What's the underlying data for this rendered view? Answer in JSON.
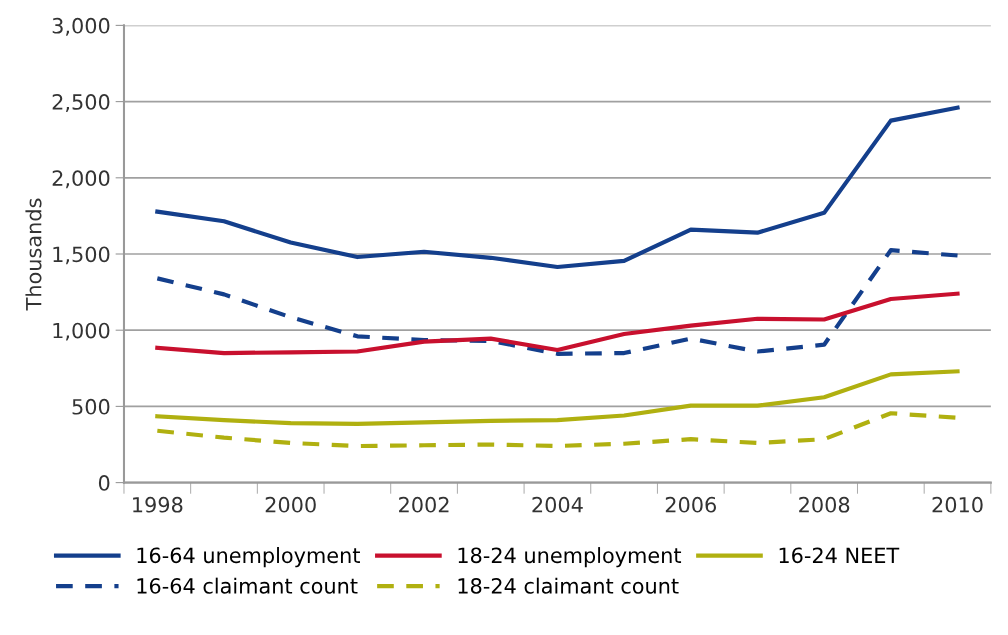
{
  "chart_data": {
    "type": "line",
    "ylabel": "Thousands",
    "categories": [
      "1998",
      null,
      "2000",
      null,
      "2002",
      null,
      "2004",
      null,
      "2006",
      null,
      "2008",
      null,
      "2010"
    ],
    "ylim": [
      0,
      3000
    ],
    "yticks": [
      0,
      {
        "value": 500,
        "label": "500"
      },
      {
        "value": 1000,
        "label": "1,000"
      },
      {
        "value": 1500,
        "label": "1,500"
      },
      {
        "value": 2000,
        "label": "2,000"
      },
      {
        "value": 2500,
        "label": "2,500"
      },
      {
        "value": 3000,
        "label": "3,000"
      }
    ],
    "grid": "y",
    "legend": "bottom",
    "marker": "none",
    "series": [
      {
        "name": "16-64 unemployment",
        "color": "#143f8c",
        "line_style": "solid",
        "values": [
          1778,
          1715,
          1575,
          1480,
          1515,
          1475,
          1415,
          1455,
          1660,
          1640,
          1770,
          2375,
          2460
        ]
      },
      {
        "name": "16-64 claimant count",
        "color": "#143f8c",
        "line_style": "dashed",
        "values": [
          1340,
          1235,
          1085,
          960,
          935,
          930,
          845,
          850,
          945,
          860,
          905,
          1525,
          1490
        ]
      },
      {
        "name": "18-24 unemployment",
        "color": "#c8102e",
        "line_style": "solid",
        "values": [
          885,
          850,
          855,
          860,
          925,
          945,
          870,
          975,
          1030,
          1075,
          1070,
          1205,
          1240
        ]
      },
      {
        "name": "18-24 claimant count",
        "color": "#b0b010",
        "line_style": "dashed",
        "values": [
          340,
          295,
          260,
          240,
          245,
          250,
          240,
          255,
          285,
          260,
          285,
          455,
          425
        ]
      },
      {
        "name": "16-24 NEET",
        "color": "#b0b010",
        "line_style": "solid",
        "values": [
          435,
          410,
          390,
          385,
          395,
          405,
          410,
          440,
          505,
          505,
          560,
          710,
          730
        ]
      }
    ]
  }
}
